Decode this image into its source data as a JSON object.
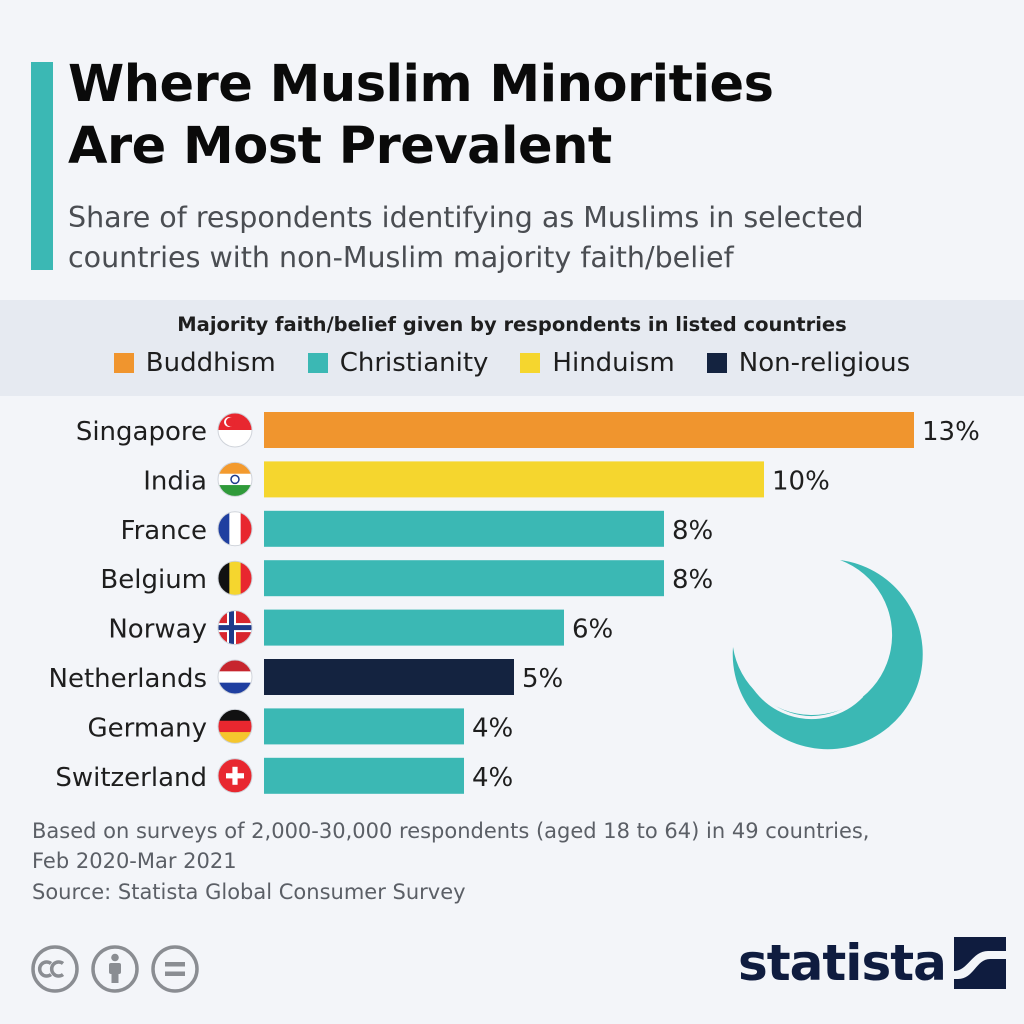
{
  "header": {
    "title_line1": "Where Muslim Minorities",
    "title_line2": "Are Most Prevalent",
    "subtitle_line1": "Share of respondents identifying as Muslims in selected",
    "subtitle_line2": "countries with non-Muslim majority faith/belief",
    "accent_color": "#3bb8b4"
  },
  "legend": {
    "heading": "Majority faith/belief given by respondents in listed countries",
    "items": [
      {
        "label": "Buddhism",
        "color": "#f0952e"
      },
      {
        "label": "Christianity",
        "color": "#3bb8b4"
      },
      {
        "label": "Hinduism",
        "color": "#f5d62e"
      },
      {
        "label": "Non-religious",
        "color": "#142340"
      }
    ]
  },
  "chart_data": {
    "type": "bar",
    "orientation": "horizontal",
    "categories": [
      "Singapore",
      "India",
      "France",
      "Belgium",
      "Norway",
      "Netherlands",
      "Germany",
      "Switzerland"
    ],
    "values": [
      13,
      10,
      8,
      8,
      6,
      5,
      4,
      4
    ],
    "value_labels": [
      "13%",
      "10%",
      "8%",
      "8%",
      "6%",
      "5%",
      "4%",
      "4%"
    ],
    "groups": [
      "Buddhism",
      "Hinduism",
      "Christianity",
      "Christianity",
      "Christianity",
      "Non-religious",
      "Christianity",
      "Christianity"
    ],
    "flag_icons": [
      "singapore-flag-icon",
      "india-flag-icon",
      "france-flag-icon",
      "belgium-flag-icon",
      "norway-flag-icon",
      "netherlands-flag-icon",
      "germany-flag-icon",
      "switzerland-flag-icon"
    ],
    "unit": "%",
    "xlim": [
      0,
      13
    ],
    "grid": false,
    "decoration_icon": "crescent-moon-icon"
  },
  "footer": {
    "note_line1": "Based on surveys of 2,000-30,000 respondents (aged 18 to 64) in 49 countries,",
    "note_line2": "Feb 2020-Mar 2021",
    "source": "Source: Statista Global Consumer Survey",
    "license_icons": [
      "cc-icon",
      "attribution-icon",
      "no-derivatives-icon"
    ],
    "brand": "statista",
    "brand_color": "#0f1c3f"
  }
}
